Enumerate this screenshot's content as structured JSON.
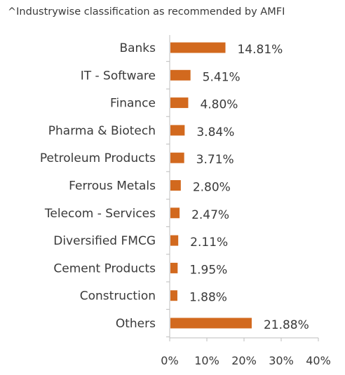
{
  "note": "^Industrywise classification as recommended by AMFI",
  "colors": {
    "bar": "#D2691E",
    "axis": "#bdbdbd",
    "text": "#3a3a3a"
  },
  "chart_data": {
    "type": "bar",
    "orientation": "horizontal",
    "title": "",
    "xlabel": "",
    "ylabel": "",
    "categories": [
      "Banks",
      "IT - Software",
      "Finance",
      "Pharma & Biotech",
      "Petroleum Products",
      "Ferrous Metals",
      "Telecom - Services",
      "Diversified FMCG",
      "Cement Products",
      "Construction",
      "Others"
    ],
    "values": [
      14.81,
      5.41,
      4.8,
      3.84,
      3.71,
      2.8,
      2.47,
      2.11,
      1.95,
      1.88,
      21.88
    ],
    "value_labels": [
      "14.81%",
      "5.41%",
      "4.80%",
      "3.84%",
      "3.71%",
      "2.80%",
      "2.47%",
      "2.11%",
      "1.95%",
      "1.88%",
      "21.88%"
    ],
    "xlim": [
      0,
      40
    ],
    "x_ticks": [
      0,
      10,
      20,
      30,
      40
    ],
    "x_tick_labels": [
      "0%",
      "10%",
      "20%",
      "30%",
      "40%"
    ],
    "grid": false,
    "legend": "none"
  }
}
